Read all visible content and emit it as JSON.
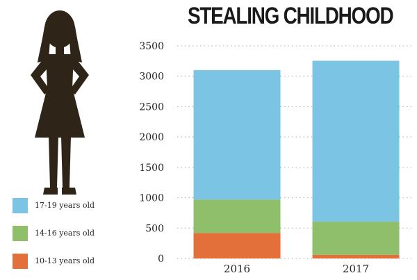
{
  "colors": {
    "s1719": "#7cc4e4",
    "s1416": "#8fbf6a",
    "s1013": "#e36f3a",
    "silhouette": "#2e2518",
    "grid": "#bbbbbb",
    "text": "#222222"
  },
  "chart_data": {
    "type": "bar",
    "stacked": true,
    "title": "STEALING CHILDHOOD",
    "xlabel": "",
    "ylabel": "",
    "categories": [
      "2016",
      "2017"
    ],
    "ylim": [
      0,
      3500
    ],
    "yticks": [
      "0",
      "500",
      "1000",
      "1500",
      "2000",
      "2500",
      "3000",
      "3500"
    ],
    "grid": true,
    "legend_position": "bottom-left",
    "series": [
      {
        "name": "10-13 years old",
        "color": "#e36f3a",
        "values": [
          420,
          60
        ]
      },
      {
        "name": "14-16 years old",
        "color": "#8fbf6a",
        "values": [
          550,
          545
        ]
      },
      {
        "name": "17-19 years old",
        "color": "#7cc4e4",
        "values": [
          2130,
          2650
        ]
      }
    ]
  },
  "legend": [
    {
      "label": "17-19 years old",
      "color": "#7cc4e4"
    },
    {
      "label": "14-16 years old",
      "color": "#8fbf6a"
    },
    {
      "label": "10-13 years old",
      "color": "#e36f3a"
    }
  ]
}
